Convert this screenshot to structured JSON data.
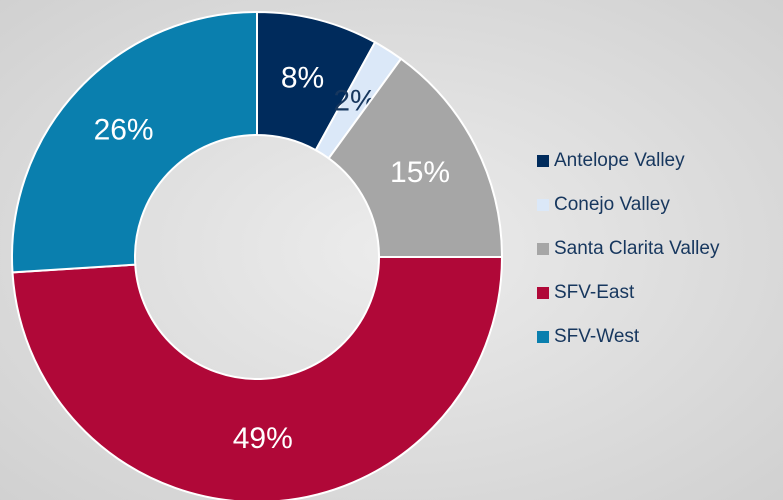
{
  "chart_data": {
    "type": "donut",
    "categories": [
      "Antelope Valley",
      "Conejo Valley",
      "Santa Clarita Valley",
      "SFV-East",
      "SFV-West"
    ],
    "values": [
      8,
      2,
      15,
      49,
      26
    ],
    "value_labels": [
      "8%",
      "2%",
      "15%",
      "49%",
      "26%"
    ],
    "colors": [
      "#002b5c",
      "#dbe8f8",
      "#a6a6a6",
      "#b00838",
      "#0a7fae"
    ],
    "legend": "right"
  }
}
